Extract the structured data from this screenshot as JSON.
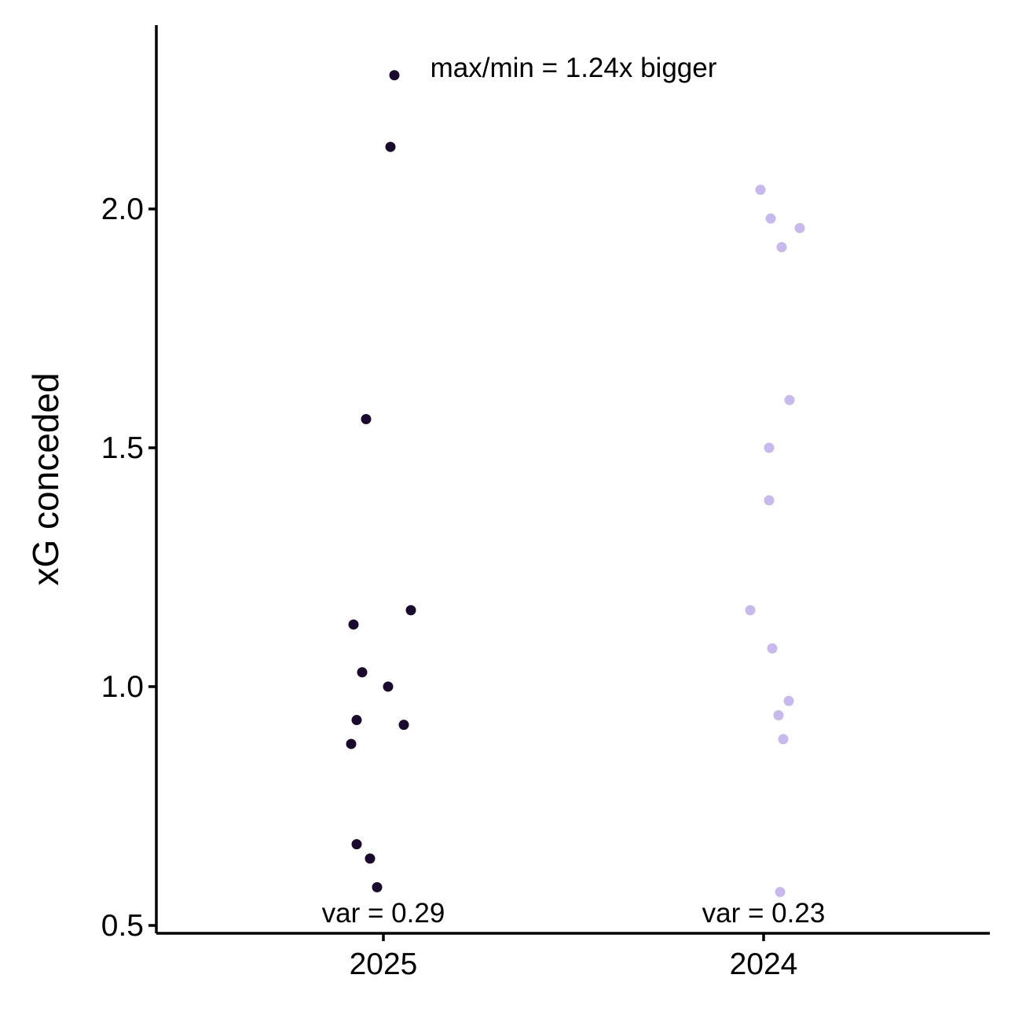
{
  "chart_data": {
    "type": "scatter",
    "ylabel": "xG conceded",
    "xlabel": "",
    "ylim": [
      0.5,
      2.38
    ],
    "grid": false,
    "legend": "none",
    "categories": [
      "2025",
      "2024"
    ],
    "y_ticks": [
      {
        "value": 0.5,
        "label": "0.5"
      },
      {
        "value": 1.0,
        "label": "1.0"
      },
      {
        "value": 1.5,
        "label": "1.5"
      },
      {
        "value": 2.0,
        "label": "2.0"
      }
    ],
    "series": [
      {
        "category": "2025",
        "color": "#1a0a2e",
        "values": [
          2.28,
          2.13,
          1.56,
          1.16,
          1.13,
          1.03,
          1.0,
          0.93,
          0.92,
          0.88,
          0.67,
          0.64,
          0.58
        ]
      },
      {
        "category": "2024",
        "color": "#c7b8ee",
        "values": [
          2.04,
          1.98,
          1.96,
          1.92,
          1.6,
          1.5,
          1.39,
          1.16,
          1.08,
          0.97,
          0.94,
          0.89,
          0.57
        ]
      }
    ],
    "annotations": {
      "top": "max/min = 1.24x bigger",
      "var_labels": [
        "var = 0.29",
        "var = 0.23"
      ]
    }
  }
}
